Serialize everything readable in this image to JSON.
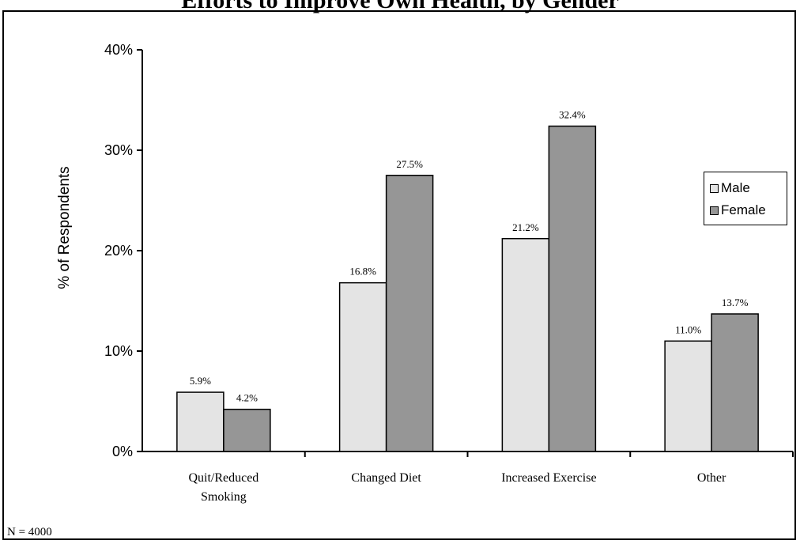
{
  "chart_data": {
    "type": "bar",
    "title": "Efforts to Improve Own Health, by Gender",
    "xlabel": "",
    "ylabel": "% of Respondents",
    "note": "N = 4000",
    "categories": [
      [
        "Quit/Reduced",
        "Smoking"
      ],
      [
        "Changed Diet"
      ],
      [
        "Increased Exercise"
      ],
      [
        "Other"
      ]
    ],
    "series": [
      {
        "name": "Male",
        "color": "#e4e4e4",
        "values": [
          5.9,
          16.8,
          21.2,
          11.0
        ],
        "labels": [
          "5.9%",
          "16.8%",
          "21.2%",
          "11.0%"
        ]
      },
      {
        "name": "Female",
        "color": "#969696",
        "values": [
          4.2,
          27.5,
          32.4,
          13.7
        ],
        "labels": [
          "4.2%",
          "27.5%",
          "32.4%",
          "13.7%"
        ]
      }
    ],
    "ylim": [
      0,
      40
    ],
    "yticks": [
      0,
      10,
      20,
      30,
      40
    ],
    "ytick_labels": [
      "0%",
      "10%",
      "20%",
      "30%",
      "40%"
    ],
    "grid": false,
    "legend_position": "right"
  }
}
